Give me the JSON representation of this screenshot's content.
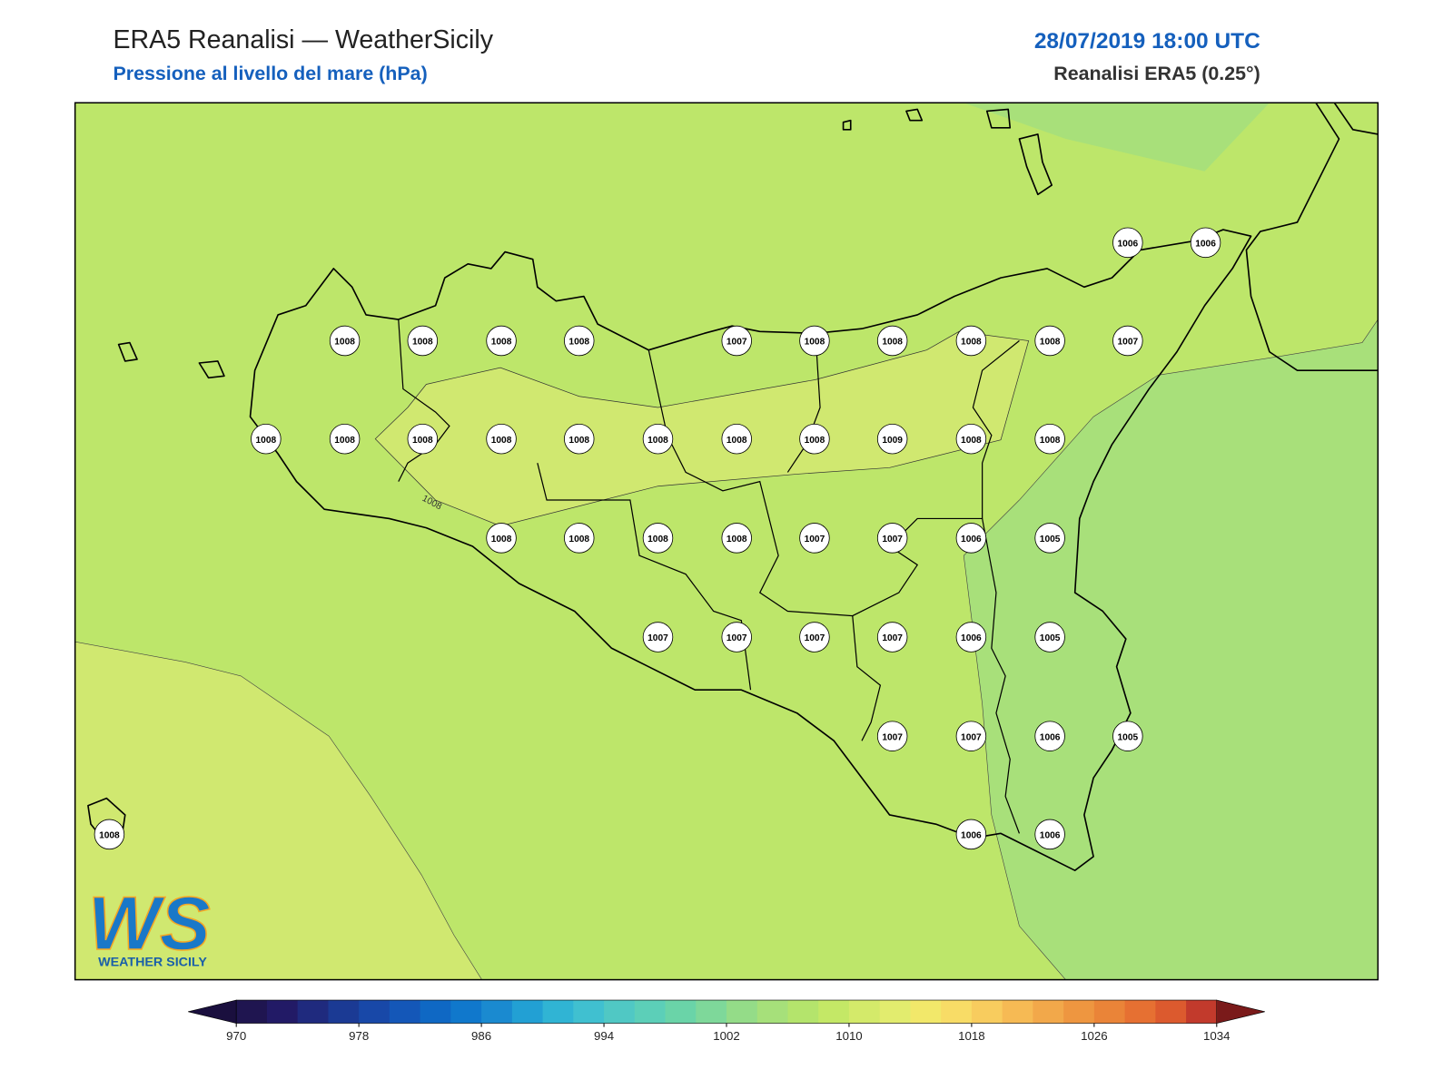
{
  "header": {
    "title": "ERA5 Reanalisi — WeatherSicily",
    "subtitle": "Pressione al livello del mare (hPa)",
    "datetime": "28/07/2019 18:00 UTC",
    "source": "Reanalisi ERA5 (0.25°)"
  },
  "map": {
    "contour_label": "1008",
    "stations": [
      1006,
      1006,
      1008,
      1008,
      1008,
      1008,
      1007,
      1008,
      1008,
      1008,
      1008,
      1007,
      1008,
      1008,
      1008,
      1008,
      1008,
      1008,
      1008,
      1008,
      1009,
      1008,
      1008,
      1008,
      1008,
      1008,
      1008,
      1007,
      1007,
      1006,
      1005,
      1007,
      1007,
      1007,
      1007,
      1006,
      1005,
      1007,
      1007,
      1006,
      1005,
      1008,
      1006,
      1006
    ]
  },
  "colorbar": {
    "ticks": [
      970,
      978,
      986,
      994,
      1002,
      1010,
      1018,
      1026,
      1034
    ],
    "colors": [
      "#1f1550",
      "#221a66",
      "#1f2a7e",
      "#1b3a94",
      "#1848a8",
      "#1457b8",
      "#0f68c4",
      "#1078cc",
      "#1a8ad0",
      "#22a0d4",
      "#30b4d4",
      "#40c0d0",
      "#50c8c4",
      "#5ccfb8",
      "#6ad4a8",
      "#7ed89a",
      "#94dc88",
      "#a6e07a",
      "#b4e46c",
      "#c4e866",
      "#d4ea6a",
      "#e2ec6e",
      "#f2e86a",
      "#f8dc66",
      "#f8cc5e",
      "#f6ba54",
      "#f2a84a",
      "#ee9640",
      "#ea8438",
      "#e67032",
      "#dc5a2e",
      "#c23a2c"
    ],
    "under_color": "#1a0f3e",
    "over_color": "#7a1a1a"
  },
  "logo": {
    "mark": "WS",
    "text": "WEATHER SICILY"
  }
}
